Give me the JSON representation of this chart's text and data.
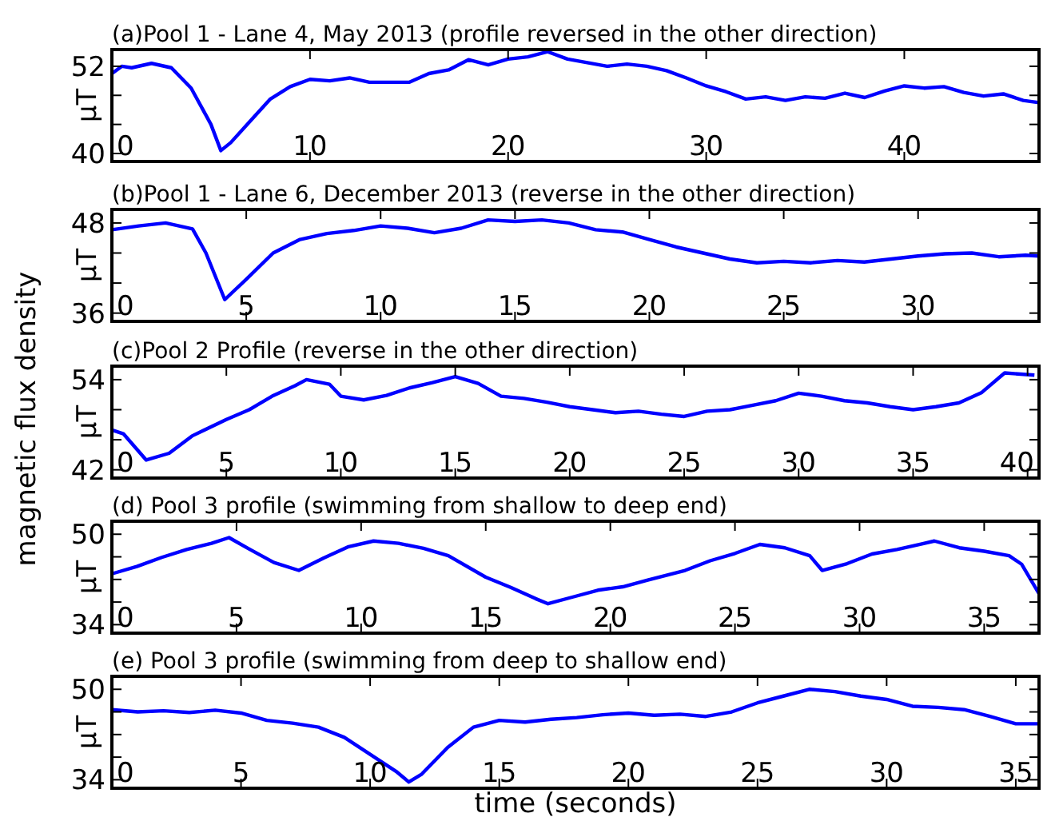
{
  "chart_data": [
    {
      "type": "line",
      "title": "(a)Pool 1 - Lane 4, May 2013 (profile reversed in the other direction)",
      "ylabel": "μT",
      "xlim": [
        0,
        46.8
      ],
      "xticks": [
        0,
        10,
        20,
        30,
        40
      ],
      "ylim": [
        38.9,
        54.3
      ],
      "yticks": [
        40,
        {
          "value": 44,
          "label": null
        },
        {
          "value": 48,
          "label": null
        },
        52
      ],
      "grid": false,
      "series": [
        {
          "color": "#0000ff",
          "x": [
            0,
            0.5,
            1,
            2,
            3,
            4,
            5,
            5.5,
            6,
            7,
            8,
            9,
            10,
            11,
            12,
            13,
            15,
            16,
            17,
            18,
            19,
            20,
            21,
            22,
            23,
            24,
            25,
            26,
            27,
            28,
            29,
            30,
            31,
            32,
            33,
            34,
            35,
            36,
            37,
            38,
            39,
            40,
            41,
            42,
            43,
            44,
            45,
            46,
            46.8
          ],
          "values": [
            51,
            52,
            51.8,
            52.4,
            51.8,
            49,
            44,
            40.4,
            41.5,
            44.5,
            47.5,
            49.2,
            50.2,
            50,
            50.4,
            49.8,
            49.8,
            51,
            51.5,
            52.9,
            52.2,
            53,
            53.3,
            54,
            53,
            52.5,
            52,
            52.3,
            52,
            51.4,
            50.4,
            49.3,
            48.5,
            47.5,
            47.8,
            47.3,
            47.8,
            47.6,
            48.3,
            47.7,
            48.6,
            49.3,
            49,
            49.2,
            48.4,
            47.9,
            48.2,
            47.3,
            47
          ]
        }
      ]
    },
    {
      "type": "line",
      "title": "(b)Pool 1 - Lane 6, December 2013 (reverse in the other direction)",
      "ylabel": "μT",
      "xlim": [
        0,
        34.5
      ],
      "xticks": [
        0,
        5,
        10,
        15,
        20,
        25,
        30
      ],
      "ylim": [
        34.9,
        49.8
      ],
      "yticks": [
        36,
        {
          "value": 40,
          "label": null
        },
        {
          "value": 44,
          "label": null
        },
        48
      ],
      "grid": false,
      "annotations": [
        "magnetic flux density"
      ],
      "series": [
        {
          "color": "#0000ff",
          "x": [
            0,
            1,
            2,
            3,
            3.5,
            4.2,
            5,
            6,
            7,
            8,
            9,
            10,
            11,
            12,
            13,
            14,
            15,
            16,
            17,
            18,
            19,
            20,
            21,
            22,
            23,
            24,
            25,
            26,
            27,
            28,
            29,
            30,
            31,
            32,
            33,
            34,
            34.5
          ],
          "values": [
            47.1,
            47.6,
            48,
            47.2,
            44,
            37.8,
            40.5,
            44,
            45.8,
            46.6,
            47,
            47.6,
            47.3,
            46.7,
            47.3,
            48.4,
            48.2,
            48.4,
            48,
            47.1,
            46.8,
            45.8,
            44.8,
            44,
            43.2,
            42.7,
            42.9,
            42.7,
            43,
            42.8,
            43.2,
            43.6,
            43.9,
            44,
            43.5,
            43.7,
            43.6
          ]
        }
      ]
    },
    {
      "type": "line",
      "title": "(c)Pool 2 Profile (reverse in the other direction)",
      "ylabel": "μT",
      "xlim": [
        0,
        40.5
      ],
      "xticks": [
        0,
        5,
        10,
        15,
        20,
        25,
        30,
        35,
        40
      ],
      "ylim": [
        40.9,
        55.8
      ],
      "yticks": [
        42,
        {
          "value": 46,
          "label": null
        },
        {
          "value": 50,
          "label": null
        },
        54
      ],
      "grid": false,
      "series": [
        {
          "color": "#0000ff",
          "x": [
            0,
            0.5,
            1.5,
            2.5,
            3.5,
            5,
            6,
            7,
            8,
            8.5,
            9.5,
            10,
            11,
            12,
            13,
            14,
            15,
            16,
            17,
            18,
            19,
            20,
            21,
            22,
            23,
            24,
            25,
            26,
            27,
            28,
            29,
            30,
            31,
            32,
            33,
            34,
            35,
            36,
            37,
            38,
            39,
            40.3
          ],
          "values": [
            47.3,
            46.8,
            43.3,
            44.2,
            46.5,
            48.7,
            50,
            51.8,
            53.2,
            54,
            53.4,
            51.8,
            51.3,
            51.9,
            52.9,
            53.6,
            54.4,
            53.5,
            51.8,
            51.5,
            51,
            50.4,
            50,
            49.6,
            49.8,
            49.4,
            49.1,
            49.8,
            50,
            50.6,
            51.2,
            52.2,
            51.8,
            51.2,
            50.9,
            50.4,
            50,
            50.4,
            50.9,
            52.3,
            54.9,
            54.6
          ]
        }
      ]
    },
    {
      "type": "line",
      "title": "(d) Pool 3 profile (swimming from shallow to deep end)",
      "ylabel": "μT",
      "xlim": [
        0,
        37.2
      ],
      "xticks": [
        0,
        5,
        10,
        15,
        20,
        25,
        30,
        35
      ],
      "ylim": [
        32.5,
        52.3
      ],
      "yticks": [
        34,
        {
          "value": 38,
          "label": null
        },
        {
          "value": 42,
          "label": null
        },
        {
          "value": 46,
          "label": null
        },
        50
      ],
      "grid": false,
      "series": [
        {
          "color": "#0000ff",
          "x": [
            0,
            1,
            2,
            3,
            4,
            4.7,
            5.5,
            6.5,
            7.5,
            8.5,
            9.5,
            10.5,
            11.5,
            12.5,
            13.5,
            15,
            16,
            17,
            17.5,
            18.5,
            19.5,
            20.5,
            21.5,
            23,
            24,
            25,
            26,
            27,
            28,
            28.5,
            29.5,
            30.5,
            31.5,
            32.5,
            33,
            34,
            35,
            36,
            36.5,
            37.2
          ],
          "values": [
            43,
            44.3,
            45.9,
            47.3,
            48.4,
            49.4,
            47.4,
            45,
            43.6,
            45.8,
            47.8,
            48.8,
            48.4,
            47.5,
            46.2,
            42.4,
            40.6,
            38.6,
            37.7,
            38.9,
            40.1,
            40.7,
            41.9,
            43.6,
            45.3,
            46.6,
            48.2,
            47.6,
            46.2,
            43.6,
            44.8,
            46.5,
            47.3,
            48.3,
            48.8,
            47.6,
            47,
            46.2,
            44.7,
            39.5
          ]
        }
      ]
    },
    {
      "type": "line",
      "title": "(e) Pool 3 profile (swimming from deep to shallow end)",
      "xlabel": "time (seconds)",
      "ylabel": "μT",
      "xlim": [
        0,
        35.9
      ],
      "xticks": [
        0,
        5,
        10,
        15,
        20,
        25,
        30,
        35
      ],
      "ylim": [
        32.5,
        52.3
      ],
      "yticks": [
        34,
        {
          "value": 38,
          "label": null
        },
        {
          "value": 42,
          "label": null
        },
        {
          "value": 46,
          "label": null
        },
        50
      ],
      "grid": false,
      "series": [
        {
          "color": "#0000ff",
          "x": [
            0,
            1,
            2,
            3,
            4,
            5,
            6,
            7,
            8,
            9,
            10,
            11,
            11.5,
            12,
            13,
            14,
            15,
            16,
            17,
            18,
            19,
            20,
            21,
            22,
            23,
            24,
            25,
            26,
            27,
            28,
            29,
            30,
            31,
            32,
            33,
            34,
            35,
            35.9
          ],
          "values": [
            46.4,
            46,
            46.2,
            45.9,
            46.3,
            45.8,
            44.5,
            44,
            43.3,
            41.5,
            38.5,
            35.5,
            33.6,
            35,
            39.7,
            43.3,
            44.5,
            44.2,
            44.7,
            45,
            45.5,
            45.8,
            45.4,
            45.6,
            45.2,
            46,
            47.6,
            48.8,
            50,
            49.6,
            48.8,
            48.2,
            47,
            46.8,
            46.4,
            45.2,
            43.9,
            43.9
          ]
        }
      ]
    }
  ]
}
